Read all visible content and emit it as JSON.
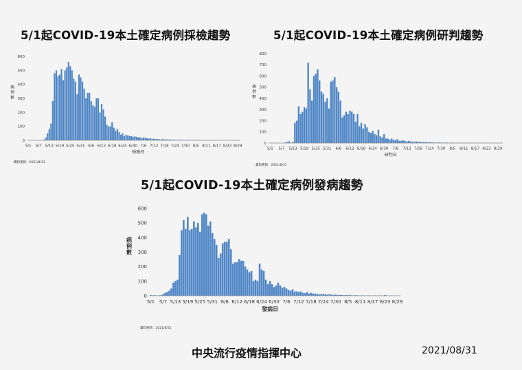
{
  "colors": {
    "bar": "#4f86c6",
    "bar_edge": "#3a6fb0",
    "axis": "#888888",
    "text": "#333333"
  },
  "footer": {
    "organization": "中央流行疫情指揮中心",
    "date": "2021/08/31"
  },
  "chart_data": [
    {
      "type": "bar",
      "title": "5/1起COVID-19本土確定病例採檢趨勢",
      "xlabel": "採檢日",
      "ylabel": "病例數",
      "ylim": [
        0,
        600
      ],
      "yticks": [
        "0",
        "100",
        "200",
        "300",
        "400",
        "500",
        "600"
      ],
      "xtick_labels": [
        "5/1",
        "5/7",
        "5/13",
        "5/19",
        "5/25",
        "5/31",
        "6/6",
        "6/12",
        "6/18",
        "6/24",
        "6/30",
        "7/6",
        "7/12",
        "7/18",
        "7/24",
        "7/30",
        "8/5",
        "8/11",
        "8/17",
        "8/23",
        "8/29"
      ],
      "note": "資料更新：2021/8/31",
      "values": [
        0,
        0,
        0,
        0,
        0,
        0,
        0,
        1,
        2,
        5,
        20,
        50,
        80,
        120,
        280,
        480,
        500,
        460,
        470,
        510,
        430,
        500,
        520,
        560,
        530,
        500,
        440,
        420,
        330,
        470,
        450,
        420,
        370,
        300,
        340,
        340,
        280,
        250,
        240,
        300,
        300,
        200,
        260,
        220,
        170,
        110,
        100,
        100,
        130,
        90,
        70,
        80,
        60,
        40,
        50,
        30,
        40,
        35,
        30,
        30,
        25,
        28,
        25,
        22,
        20,
        15,
        20,
        18,
        15,
        12,
        15,
        10,
        12,
        8,
        10,
        8,
        6,
        10,
        5,
        7,
        5,
        6,
        4,
        5,
        4,
        3,
        4,
        4,
        3,
        3,
        2,
        2,
        3,
        2,
        2,
        1,
        2,
        3,
        2,
        1,
        1,
        2,
        1,
        1,
        1,
        2,
        1,
        1,
        1,
        2,
        1,
        1,
        1,
        1,
        1,
        2,
        1,
        1,
        1,
        1,
        1,
        1
      ]
    },
    {
      "type": "bar",
      "title": "5/1起COVID-19本土確定病例研判趨勢",
      "xlabel": "研判日",
      "ylabel": "病例數",
      "ylim": [
        0,
        800
      ],
      "yticks": [
        "0",
        "100",
        "200",
        "300",
        "400",
        "500",
        "600",
        "700",
        "800"
      ],
      "xtick_labels": [
        "5/1",
        "5/7",
        "5/13",
        "5/19",
        "5/25",
        "5/31",
        "6/6",
        "6/12",
        "6/18",
        "6/24",
        "6/30",
        "7/6",
        "7/12",
        "7/18",
        "7/24",
        "7/30",
        "8/5",
        "8/11",
        "8/17",
        "8/23",
        "8/29"
      ],
      "note": "資料更新：2021/8/31",
      "values": [
        0,
        0,
        0,
        0,
        0,
        0,
        0,
        0,
        5,
        10,
        15,
        0,
        10,
        180,
        200,
        330,
        260,
        280,
        320,
        310,
        720,
        480,
        380,
        600,
        620,
        660,
        560,
        460,
        440,
        370,
        400,
        310,
        550,
        560,
        590,
        500,
        460,
        380,
        230,
        250,
        280,
        260,
        290,
        280,
        260,
        190,
        260,
        150,
        180,
        130,
        170,
        140,
        100,
        90,
        110,
        80,
        70,
        120,
        60,
        50,
        80,
        40,
        40,
        30,
        40,
        30,
        25,
        35,
        20,
        20,
        25,
        18,
        15,
        20,
        15,
        12,
        10,
        15,
        10,
        12,
        8,
        10,
        8,
        6,
        8,
        5,
        6,
        5,
        4,
        5,
        4,
        3,
        4,
        5,
        3,
        3,
        4,
        2,
        3,
        3,
        2,
        2,
        3,
        2,
        2,
        2,
        3,
        1,
        2,
        2,
        1,
        2,
        1,
        1,
        2,
        1,
        1,
        1,
        1,
        2,
        1,
        1,
        1
      ]
    },
    {
      "type": "bar",
      "title": "5/1起COVID-19本土確定病例發病趨勢",
      "xlabel": "發病日",
      "ylabel": "病例數",
      "ylim": [
        0,
        600
      ],
      "yticks": [
        "0",
        "100",
        "200",
        "300",
        "400",
        "500",
        "600"
      ],
      "xtick_labels": [
        "5/1",
        "5/7",
        "5/13",
        "5/19",
        "5/25",
        "5/31",
        "6/6",
        "6/12",
        "6/18",
        "6/24",
        "6/30",
        "7/6",
        "7/12",
        "7/18",
        "7/24",
        "7/30",
        "8/5",
        "8/11",
        "8/17",
        "8/23",
        "8/29"
      ],
      "note": "資料更新：2021/8/31",
      "values": [
        5,
        3,
        4,
        2,
        3,
        4,
        10,
        20,
        25,
        35,
        50,
        90,
        100,
        110,
        280,
        450,
        520,
        460,
        540,
        450,
        460,
        510,
        470,
        500,
        440,
        560,
        570,
        560,
        480,
        510,
        430,
        390,
        350,
        260,
        290,
        360,
        370,
        370,
        390,
        320,
        220,
        230,
        230,
        250,
        240,
        240,
        200,
        180,
        160,
        170,
        100,
        110,
        100,
        220,
        180,
        170,
        110,
        80,
        100,
        80,
        60,
        70,
        90,
        70,
        55,
        60,
        50,
        40,
        35,
        45,
        30,
        30,
        25,
        30,
        20,
        18,
        25,
        15,
        20,
        15,
        15,
        12,
        10,
        12,
        12,
        10,
        8,
        10,
        8,
        6,
        8,
        5,
        6,
        5,
        4,
        5,
        4,
        5,
        3,
        3,
        4,
        3,
        2,
        3,
        2,
        2,
        3,
        2,
        2,
        2,
        1,
        2,
        2,
        1,
        5,
        2,
        1,
        1,
        1,
        1,
        1,
        1
      ]
    }
  ]
}
